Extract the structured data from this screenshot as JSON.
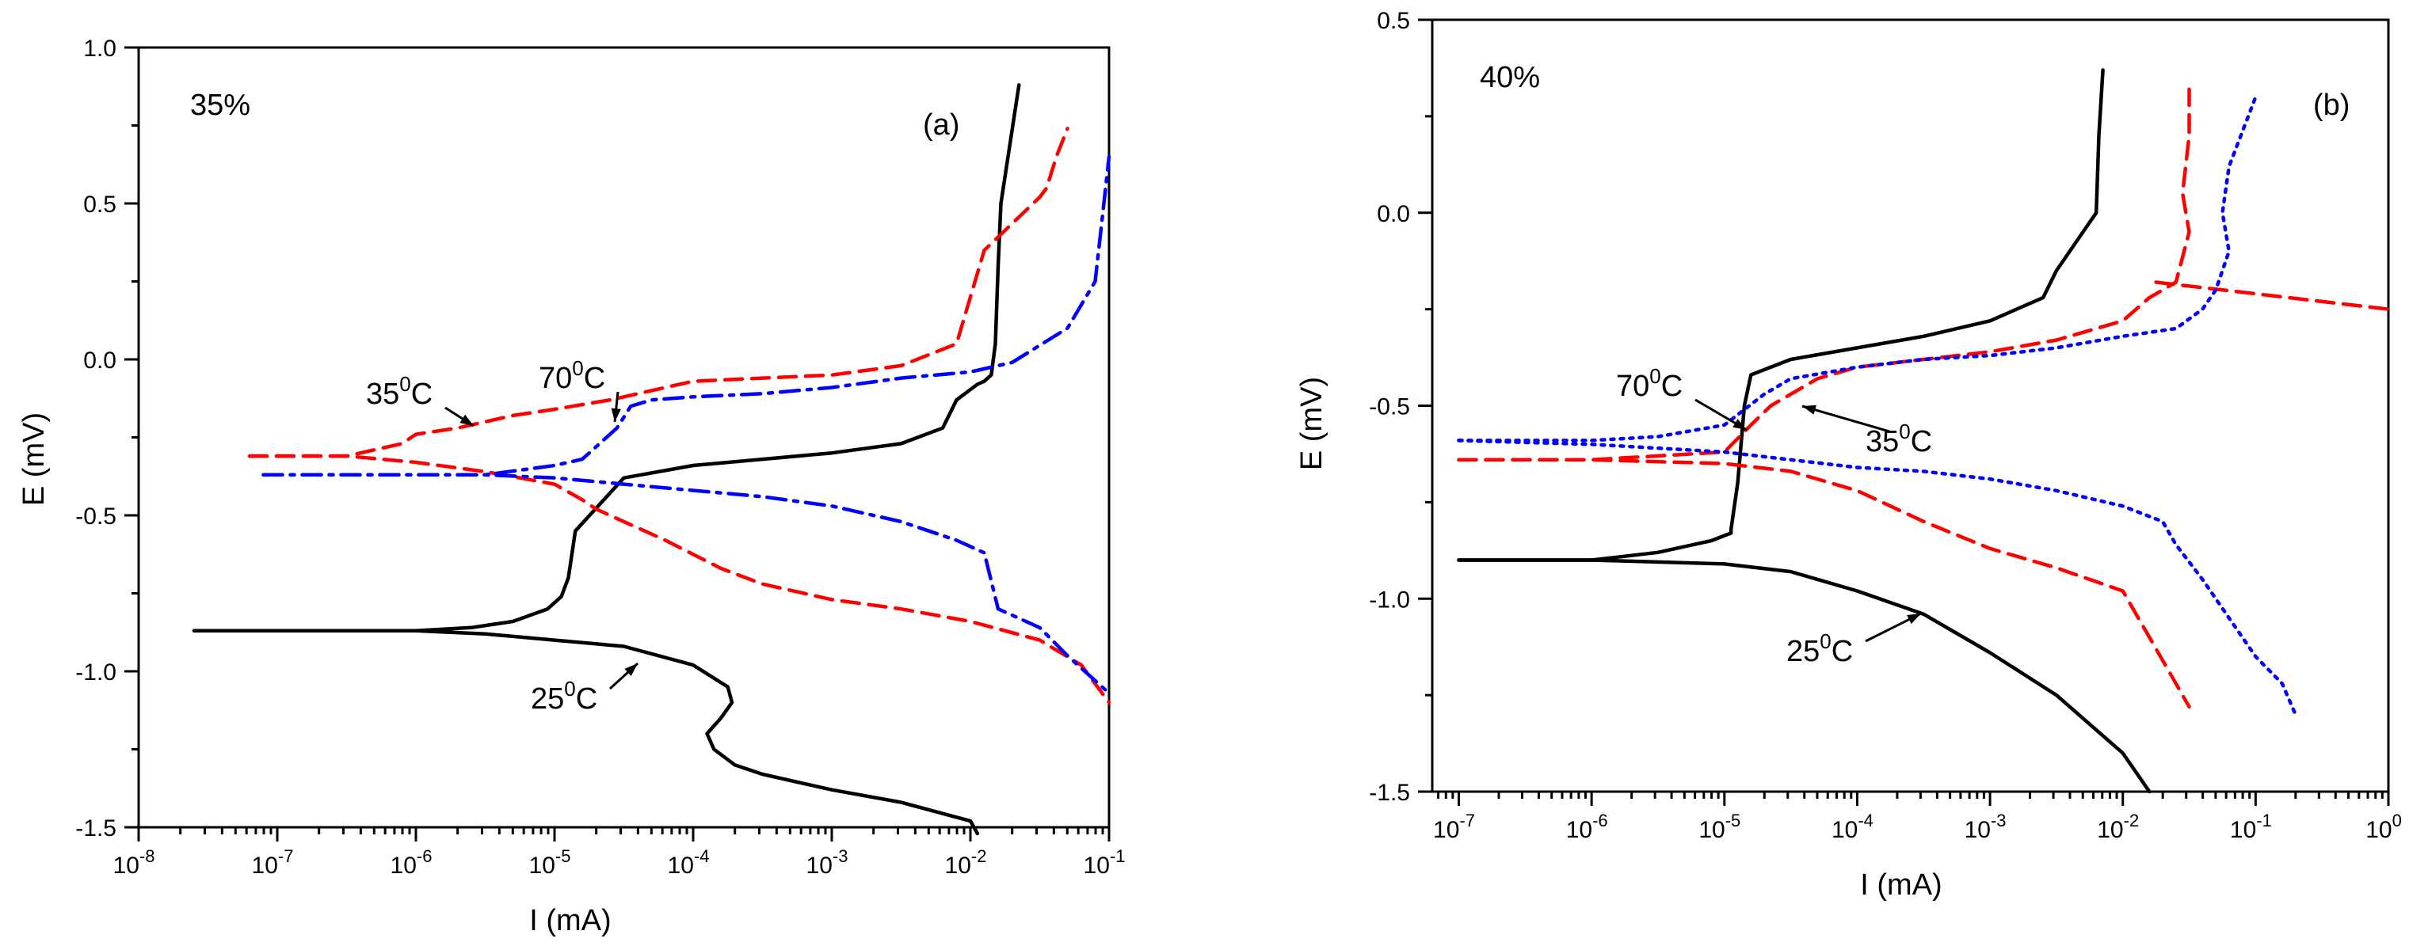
{
  "chart_data": [
    {
      "id": "a",
      "type": "line",
      "panel_label": "(a)",
      "concentration_label": "35%",
      "xlabel": "I (mA)",
      "ylabel": "E (mV)",
      "xscale": "log",
      "xlim_exp": [
        -8,
        -1
      ],
      "ylim": [
        -1.5,
        1.0
      ],
      "xticks": [
        {
          "exp": "-8"
        },
        {
          "exp": "-7"
        },
        {
          "exp": "-6"
        },
        {
          "exp": "-5"
        },
        {
          "exp": "-4"
        },
        {
          "exp": "-3"
        },
        {
          "exp": "-2"
        },
        {
          "exp": "-1"
        }
      ],
      "yticks": [
        "1.0",
        "0.5",
        "0.0",
        "-0.5",
        "-1.0",
        "-1.5"
      ],
      "legend": "none",
      "annotations": [
        {
          "label": "25°C",
          "base": "25",
          "sup": "0",
          "unit": "C"
        },
        {
          "label": "35°C",
          "base": "35",
          "sup": "0",
          "unit": "C"
        },
        {
          "label": "70°C",
          "base": "70",
          "sup": "0",
          "unit": "C"
        }
      ],
      "series": [
        {
          "name": "25°C",
          "color": "#000000",
          "style": "solid",
          "x": [
            -7.6,
            -7.0,
            -6.0,
            -5.6,
            -5.3,
            -5.05,
            -4.95,
            -4.9,
            -4.85,
            -4.5,
            -4.0,
            -3.5,
            -3.0,
            -2.5,
            -2.2,
            -2.1,
            -1.95,
            -1.9,
            -1.85,
            -1.82,
            -1.8,
            -1.78,
            -1.65
          ],
          "y": [
            -0.87,
            -0.87,
            -0.87,
            -0.86,
            -0.84,
            -0.8,
            -0.76,
            -0.7,
            -0.55,
            -0.38,
            -0.34,
            -0.32,
            -0.3,
            -0.27,
            -0.22,
            -0.13,
            -0.08,
            -0.07,
            -0.05,
            0.05,
            0.3,
            0.5,
            0.88
          ],
          "x2": [
            -7.6,
            -7.0,
            -6.0,
            -5.5,
            -5.0,
            -4.5,
            -4.0,
            -3.75,
            -3.72,
            -3.8,
            -3.9,
            -3.85,
            -3.7,
            -3.5,
            -3.0,
            -2.5,
            -2.0,
            -1.95
          ],
          "y2": [
            -0.87,
            -0.87,
            -0.87,
            -0.88,
            -0.9,
            -0.92,
            -0.98,
            -1.05,
            -1.1,
            -1.15,
            -1.2,
            -1.25,
            -1.3,
            -1.33,
            -1.38,
            -1.42,
            -1.48,
            -1.52
          ]
        },
        {
          "name": "35°C",
          "color": "#ff0000",
          "style": "dashed",
          "x": [
            -7.2,
            -6.5,
            -6.1,
            -6.0,
            -5.7,
            -5.3,
            -5.0,
            -4.6,
            -4.5,
            -4.3,
            -4.0,
            -3.5,
            -3.0,
            -2.5,
            -2.1,
            -1.9,
            -1.5,
            -1.45,
            -1.38,
            -1.3
          ],
          "y": [
            -0.31,
            -0.31,
            -0.27,
            -0.24,
            -0.22,
            -0.18,
            -0.16,
            -0.13,
            -0.12,
            -0.1,
            -0.07,
            -0.06,
            -0.05,
            -0.02,
            0.05,
            0.35,
            0.52,
            0.55,
            0.65,
            0.74
          ],
          "x2": [
            -7.2,
            -6.5,
            -6.0,
            -5.5,
            -5.0,
            -4.8,
            -4.7,
            -4.5,
            -4.2,
            -3.8,
            -3.5,
            -3.0,
            -2.5,
            -2.0,
            -1.5,
            -1.2,
            -1.0
          ],
          "y2": [
            -0.31,
            -0.31,
            -0.33,
            -0.36,
            -0.4,
            -0.45,
            -0.48,
            -0.52,
            -0.58,
            -0.67,
            -0.72,
            -0.77,
            -0.8,
            -0.84,
            -0.9,
            -0.98,
            -1.1
          ]
        },
        {
          "name": "70°C",
          "color": "#0000ff",
          "style": "dashdot",
          "x": [
            -7.1,
            -6.5,
            -6.0,
            -5.5,
            -5.0,
            -4.8,
            -4.55,
            -4.45,
            -4.3,
            -4.0,
            -3.5,
            -3.0,
            -2.5,
            -2.0,
            -1.7,
            -1.3,
            -1.1,
            -1.05,
            -1.0
          ],
          "y": [
            -0.37,
            -0.37,
            -0.37,
            -0.37,
            -0.34,
            -0.32,
            -0.22,
            -0.15,
            -0.13,
            -0.12,
            -0.11,
            -0.09,
            -0.06,
            -0.04,
            -0.01,
            0.1,
            0.25,
            0.45,
            0.65
          ],
          "x2": [
            -7.1,
            -6.5,
            -6.0,
            -5.5,
            -5.0,
            -4.5,
            -4.0,
            -3.5,
            -3.0,
            -2.5,
            -2.1,
            -1.9,
            -1.8,
            -1.5,
            -1.3,
            -1.0
          ],
          "y2": [
            -0.37,
            -0.37,
            -0.37,
            -0.37,
            -0.38,
            -0.4,
            -0.42,
            -0.44,
            -0.47,
            -0.52,
            -0.58,
            -0.62,
            -0.8,
            -0.86,
            -0.95,
            -1.07
          ]
        }
      ]
    },
    {
      "id": "b",
      "type": "line",
      "panel_label": "(b)",
      "concentration_label": "40%",
      "xlabel": "I (mA)",
      "ylabel": "E (mV)",
      "xscale": "log",
      "xlim_exp": [
        -7.2,
        0
      ],
      "ylim": [
        -1.5,
        0.5
      ],
      "xticks": [
        {
          "exp": "-7"
        },
        {
          "exp": "-6"
        },
        {
          "exp": "-5"
        },
        {
          "exp": "-4"
        },
        {
          "exp": "-3"
        },
        {
          "exp": "-2"
        },
        {
          "exp": "-1"
        },
        {
          "exp": "0"
        }
      ],
      "yticks": [
        "0.5",
        "0.0",
        "-0.5",
        "-1.0",
        "-1.5"
      ],
      "legend": "none",
      "annotations": [
        {
          "label": "25°C",
          "base": "25",
          "sup": "0",
          "unit": "C"
        },
        {
          "label": "35°C",
          "base": "35",
          "sup": "0",
          "unit": "C"
        },
        {
          "label": "70°C",
          "base": "70",
          "sup": "0",
          "unit": "C"
        }
      ],
      "series": [
        {
          "name": "25°C",
          "color": "#000000",
          "style": "solid",
          "x": [
            -7.0,
            -6.0,
            -5.5,
            -5.1,
            -4.95,
            -4.95,
            -4.9,
            -4.85,
            -4.8,
            -4.5,
            -4.0,
            -3.5,
            -3.0,
            -2.6,
            -2.5,
            -2.4,
            -2.3,
            -2.2,
            -2.18,
            -2.15
          ],
          "y": [
            -0.9,
            -0.9,
            -0.88,
            -0.85,
            -0.83,
            -0.82,
            -0.7,
            -0.5,
            -0.42,
            -0.38,
            -0.35,
            -0.32,
            -0.28,
            -0.22,
            -0.15,
            -0.1,
            -0.05,
            0.0,
            0.2,
            0.37
          ],
          "x2": [
            -7.0,
            -6.0,
            -5.0,
            -4.5,
            -4.0,
            -3.5,
            -3.0,
            -2.5,
            -2.0,
            -1.8
          ],
          "y2": [
            -0.9,
            -0.9,
            -0.91,
            -0.93,
            -0.98,
            -1.04,
            -1.14,
            -1.25,
            -1.4,
            -1.5
          ]
        },
        {
          "name": "35°C",
          "color": "#ff0000",
          "style": "dashed",
          "x": [
            -7.0,
            -6.0,
            -5.0,
            -4.8,
            -4.65,
            -4.5,
            -4.3,
            -4.0,
            -3.5,
            -3.0,
            -2.5,
            -2.0,
            -1.8,
            -1.6,
            -1.5,
            -1.55,
            -1.5,
            -1.5
          ],
          "y": [
            -0.64,
            -0.64,
            -0.62,
            -0.55,
            -0.5,
            -0.47,
            -0.43,
            -0.4,
            -0.38,
            -0.36,
            -0.33,
            -0.28,
            -0.22,
            -0.18,
            -0.05,
            0.05,
            0.2,
            0.32
          ],
          "x2": [
            -7.0,
            -6.0,
            -5.0,
            -4.5,
            -4.0,
            -3.5,
            -3.0,
            -2.5,
            -2.0,
            -1.8,
            -1.6,
            -1.5
          ],
          "y2": [
            -0.64,
            -0.64,
            -0.65,
            -0.67,
            -0.72,
            -0.8,
            -0.87,
            -0.92,
            -0.98,
            -1.1,
            -1.22,
            -1.28
          ],
          "x3": [
            -1.75,
            -1.5,
            -1.0,
            -0.5,
            0.0
          ],
          "y3": [
            -0.18,
            -0.19,
            -0.21,
            -0.23,
            -0.25
          ]
        },
        {
          "name": "70°C",
          "color": "#0000ff",
          "style": "dotted",
          "x": [
            -7.0,
            -6.5,
            -6.0,
            -5.5,
            -5.0,
            -4.7,
            -4.5,
            -4.0,
            -3.5,
            -3.0,
            -2.5,
            -2.0,
            -1.6,
            -1.4,
            -1.3,
            -1.2,
            -1.25,
            -1.2,
            -1.0
          ],
          "y": [
            -0.59,
            -0.59,
            -0.59,
            -0.58,
            -0.55,
            -0.47,
            -0.43,
            -0.4,
            -0.38,
            -0.37,
            -0.35,
            -0.32,
            -0.3,
            -0.25,
            -0.2,
            -0.1,
            0.0,
            0.12,
            0.3
          ],
          "x2": [
            -7.0,
            -6.0,
            -5.0,
            -4.5,
            -4.0,
            -3.5,
            -3.0,
            -2.5,
            -2.0,
            -1.7,
            -1.6,
            -1.4,
            -1.2,
            -1.0,
            -0.8,
            -0.7
          ],
          "y2": [
            -0.59,
            -0.6,
            -0.62,
            -0.64,
            -0.66,
            -0.67,
            -0.69,
            -0.72,
            -0.76,
            -0.8,
            -0.86,
            -0.95,
            -1.05,
            -1.15,
            -1.22,
            -1.3
          ]
        }
      ]
    }
  ]
}
